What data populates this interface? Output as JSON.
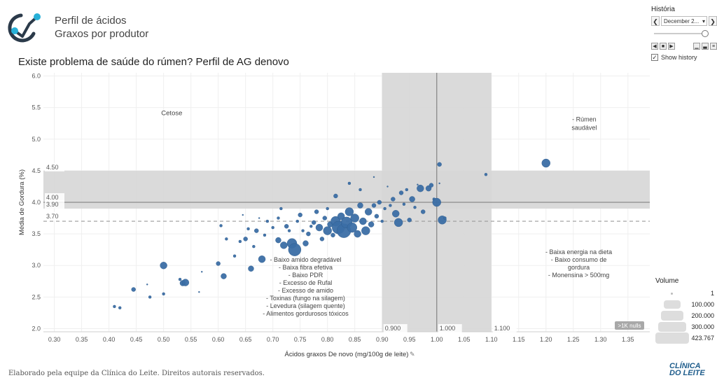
{
  "header": {
    "title_line1": "Perfil de ácidos",
    "title_line2": "Graxos por produtor"
  },
  "chart_title": "Existe problema de saúde do rúmen? Perfil de AG denovo",
  "panel": {
    "historia_label": "História",
    "selected_date": "December 2...",
    "show_history_label": "Show history",
    "show_history_checked": "✓"
  },
  "legend": {
    "title": "Volume",
    "items": [
      "1",
      "100.000",
      "200.000",
      "300.000",
      "423.767"
    ]
  },
  "footer": "Elaborado pela equipe da Clínica do Leite. Direitos autorais reservados.",
  "brand": {
    "line1": "CLÍNICA",
    "line2": "DO LEITE"
  },
  "colors": {
    "point": "#3b6ea5",
    "band": "#d6d6d6",
    "refline": "#8a8a8a",
    "dashed": "#9a9a9a"
  },
  "chart_data": {
    "type": "scatter",
    "title": "Existe problema de saúde do rúmen? Perfil de AG denovo",
    "xlabel": "Ácidos graxos De novo (mg/100g de leite)",
    "ylabel": "Média de Gordura (%)",
    "xlim": [
      0.28,
      1.39
    ],
    "ylim": [
      1.95,
      6.05
    ],
    "x_ticks": [
      "0.30",
      "0.35",
      "0.40",
      "0.45",
      "0.50",
      "0.55",
      "0.60",
      "0.65",
      "0.70",
      "0.75",
      "0.80",
      "0.85",
      "0.90",
      "0.95",
      "1.00",
      "1.05",
      "1.10",
      "1.15",
      "1.20",
      "1.25",
      "1.30",
      "1.35"
    ],
    "y_ticks": [
      "2.0",
      "2.5",
      "3.0",
      "3.5",
      "4.0",
      "4.5",
      "5.0",
      "5.5",
      "6.0"
    ],
    "bands": {
      "y_band": {
        "from": 3.9,
        "to": 4.5,
        "labels": [
          "4.50",
          "3.90"
        ]
      },
      "x_band": {
        "from": 0.9,
        "to": 1.1,
        "labels": [
          "0.900",
          "1.100"
        ]
      }
    },
    "ref_lines": {
      "y_solid": {
        "value": 4.0,
        "label": "4.00"
      },
      "y_dashed": {
        "value": 3.7,
        "label": "3.70"
      },
      "x_solid": {
        "value": 1.0,
        "label": "1.000"
      }
    },
    "annotations": {
      "cetose": "Cetose",
      "rumen": [
        "- Rúmen",
        "saudável"
      ],
      "baixa": [
        "- Baixa energia na dieta",
        "- Baixo consumo de",
        "gordura",
        "- Monensina > 500mg"
      ],
      "baixo": [
        "- Baixo amido degradável",
        "- Baixa fibra efetiva",
        "- Baixo PDR",
        "- Excesso de Rufal",
        "- Excesso de amido",
        "- Toxinas (fungo na silagem)",
        "- Levedura (silagem quente)",
        "- Alimentos gordurosos tóxicos"
      ]
    },
    "nulls_badge": ">1K nulls",
    "points": [
      [
        0.41,
        2.35,
        2
      ],
      [
        0.42,
        2.33,
        2
      ],
      [
        0.445,
        2.62,
        3
      ],
      [
        0.47,
        2.7,
        1
      ],
      [
        0.475,
        2.5,
        2
      ],
      [
        0.5,
        3.0,
        5
      ],
      [
        0.5,
        2.55,
        2
      ],
      [
        0.53,
        2.78,
        2
      ],
      [
        0.535,
        2.72,
        4
      ],
      [
        0.54,
        2.73,
        5
      ],
      [
        0.565,
        2.58,
        1
      ],
      [
        0.57,
        2.9,
        1
      ],
      [
        0.6,
        3.03,
        3
      ],
      [
        0.605,
        3.63,
        2
      ],
      [
        0.61,
        2.83,
        4
      ],
      [
        0.615,
        3.42,
        2
      ],
      [
        0.63,
        3.15,
        2
      ],
      [
        0.64,
        3.38,
        2
      ],
      [
        0.645,
        3.8,
        1
      ],
      [
        0.65,
        3.42,
        3
      ],
      [
        0.655,
        3.58,
        2
      ],
      [
        0.66,
        2.95,
        4
      ],
      [
        0.665,
        3.3,
        2
      ],
      [
        0.67,
        3.55,
        3
      ],
      [
        0.675,
        3.75,
        1
      ],
      [
        0.68,
        3.1,
        5
      ],
      [
        0.685,
        3.48,
        2
      ],
      [
        0.69,
        3.7,
        2
      ],
      [
        0.7,
        3.6,
        2
      ],
      [
        0.71,
        3.4,
        4
      ],
      [
        0.71,
        3.75,
        2
      ],
      [
        0.715,
        3.9,
        2
      ],
      [
        0.72,
        3.32,
        5
      ],
      [
        0.725,
        3.62,
        3
      ],
      [
        0.73,
        3.55,
        2
      ],
      [
        0.735,
        3.35,
        7
      ],
      [
        0.74,
        3.25,
        9
      ],
      [
        0.745,
        3.7,
        2
      ],
      [
        0.75,
        3.8,
        3
      ],
      [
        0.755,
        3.55,
        2
      ],
      [
        0.76,
        3.35,
        4
      ],
      [
        0.765,
        3.5,
        3
      ],
      [
        0.77,
        3.62,
        2
      ],
      [
        0.775,
        3.68,
        3
      ],
      [
        0.78,
        3.85,
        3
      ],
      [
        0.785,
        3.6,
        5
      ],
      [
        0.79,
        3.42,
        3
      ],
      [
        0.795,
        3.75,
        3
      ],
      [
        0.8,
        3.55,
        6
      ],
      [
        0.8,
        3.9,
        2
      ],
      [
        0.805,
        3.65,
        4
      ],
      [
        0.81,
        3.48,
        3
      ],
      [
        0.815,
        4.1,
        3
      ],
      [
        0.815,
        3.7,
        7
      ],
      [
        0.82,
        3.6,
        9
      ],
      [
        0.825,
        3.78,
        5
      ],
      [
        0.83,
        3.55,
        10
      ],
      [
        0.835,
        3.68,
        8
      ],
      [
        0.84,
        3.85,
        6
      ],
      [
        0.84,
        4.3,
        2
      ],
      [
        0.845,
        3.6,
        7
      ],
      [
        0.85,
        3.75,
        6
      ],
      [
        0.855,
        3.5,
        5
      ],
      [
        0.86,
        3.95,
        4
      ],
      [
        0.86,
        4.2,
        2
      ],
      [
        0.865,
        3.7,
        5
      ],
      [
        0.87,
        3.55,
        6
      ],
      [
        0.875,
        3.85,
        5
      ],
      [
        0.88,
        3.65,
        4
      ],
      [
        0.885,
        3.95,
        3
      ],
      [
        0.885,
        4.4,
        1
      ],
      [
        0.89,
        3.78,
        3
      ],
      [
        0.895,
        4.0,
        3
      ],
      [
        0.9,
        3.7,
        2
      ],
      [
        0.905,
        3.9,
        2
      ],
      [
        0.91,
        4.25,
        1
      ],
      [
        0.915,
        3.95,
        2
      ],
      [
        0.92,
        4.05,
        3
      ],
      [
        0.925,
        3.82,
        5
      ],
      [
        0.93,
        3.68,
        6
      ],
      [
        0.935,
        4.15,
        3
      ],
      [
        0.94,
        3.97,
        2
      ],
      [
        0.945,
        4.2,
        2
      ],
      [
        0.95,
        3.72,
        3
      ],
      [
        0.955,
        4.05,
        4
      ],
      [
        0.96,
        3.92,
        2
      ],
      [
        0.965,
        4.28,
        1
      ],
      [
        0.97,
        4.22,
        5
      ],
      [
        0.975,
        3.85,
        3
      ],
      [
        0.985,
        4.22,
        4
      ],
      [
        0.99,
        4.27,
        3
      ],
      [
        0.995,
        4.05,
        2
      ],
      [
        1.0,
        4.0,
        6
      ],
      [
        1.005,
        4.6,
        3
      ],
      [
        1.005,
        4.3,
        1
      ],
      [
        1.01,
        3.72,
        6
      ],
      [
        1.015,
        3.75,
        2
      ],
      [
        1.09,
        4.44,
        2
      ],
      [
        1.2,
        4.62,
        6
      ]
    ]
  }
}
